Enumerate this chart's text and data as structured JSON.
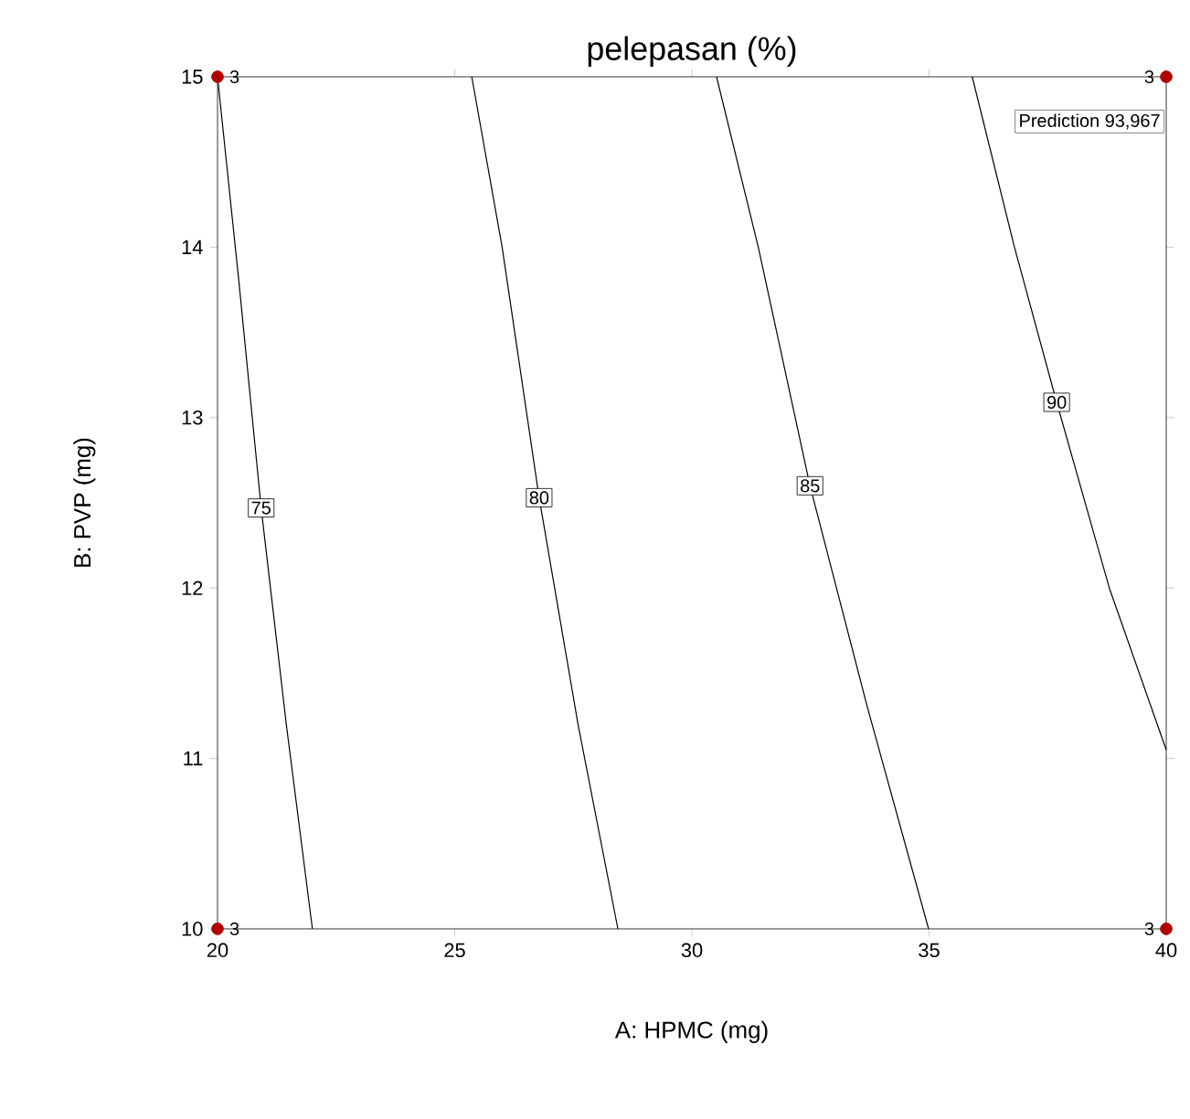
{
  "chart_data": {
    "type": "line",
    "title": "pelepasan (%)",
    "xlabel": "A: HPMC (mg)",
    "ylabel": "B: PVP (mg)",
    "xlim": [
      20,
      40
    ],
    "ylim": [
      10,
      15
    ],
    "xticks": [
      20,
      25,
      30,
      35,
      40
    ],
    "yticks": [
      10,
      11,
      12,
      13,
      14,
      15
    ],
    "marker": "none",
    "line_style": "solid",
    "legend": false,
    "series": [
      {
        "name": "75",
        "color": "#000000",
        "x": [
          20.0,
          20.45,
          20.92,
          21.45,
          22.0
        ],
        "values": [
          15,
          13.8,
          12.47,
          11.2,
          10
        ]
      },
      {
        "name": "80",
        "color": "#000000",
        "x": [
          25.36,
          26.0,
          26.78,
          27.6,
          28.44
        ],
        "values": [
          15,
          14,
          12.53,
          11.2,
          10
        ]
      },
      {
        "name": "85",
        "color": "#000000",
        "x": [
          30.52,
          31.4,
          32.49,
          33.7,
          34.99
        ],
        "values": [
          15,
          14,
          12.6,
          11.3,
          10
        ]
      },
      {
        "name": "90",
        "color": "#000000",
        "x": [
          35.91,
          36.8,
          37.69,
          38.8,
          40.0
        ],
        "values": [
          15,
          14,
          13.09,
          12.0,
          11.05
        ]
      },
      {
        "type": "scatter",
        "marker": "circle",
        "color": "#b00000",
        "x": [
          20,
          20,
          40,
          40
        ],
        "values": [
          10,
          15,
          10,
          15
        ]
      }
    ],
    "annotations": [
      "Prediction 93,967",
      "3",
      "3",
      "3",
      "3"
    ]
  }
}
